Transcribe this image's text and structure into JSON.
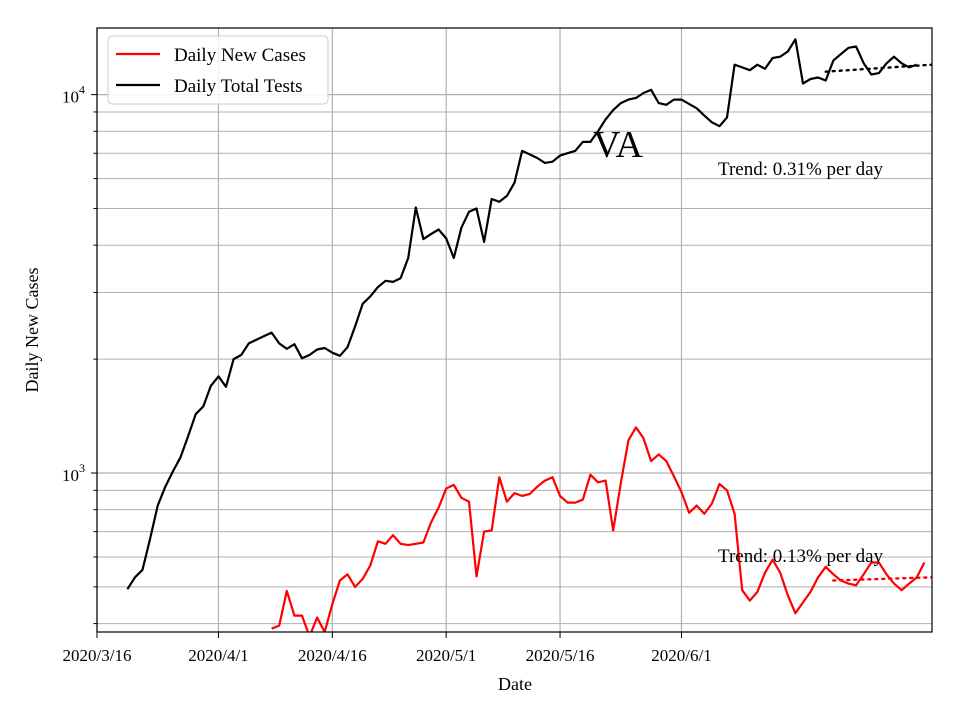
{
  "chart_data": {
    "type": "line",
    "title": "VA",
    "xlabel": "Date",
    "ylabel": "Daily New Cases",
    "yscale": "log",
    "ylim": [
      380,
      15000
    ],
    "xlim": [
      "2020-03-16",
      "2020-07-04"
    ],
    "x_ticks": [
      "2020/3/16",
      "2020/4/1",
      "2020/4/16",
      "2020/5/1",
      "2020/5/16",
      "2020/6/1"
    ],
    "x_tick_dates": [
      "2020-03-16",
      "2020-04-01",
      "2020-04-16",
      "2020-05-01",
      "2020-05-16",
      "2020-06-01"
    ],
    "y_ticks": [
      {
        "value": 1000,
        "base": "10",
        "exp": "3"
      },
      {
        "value": 10000,
        "base": "10",
        "exp": "4"
      }
    ],
    "grid": true,
    "legend_position": "top-left",
    "x_start": "2020-03-20",
    "series": [
      {
        "name": "Daily New Cases",
        "color": "#ff0000",
        "x_start": "2020-04-08",
        "values": [
          388,
          395,
          488,
          420,
          420,
          370,
          415,
          380,
          450,
          520,
          540,
          500,
          525,
          570,
          660,
          650,
          685,
          650,
          645,
          650,
          655,
          740,
          810,
          910,
          930,
          860,
          840,
          533,
          700,
          705,
          975,
          840,
          885,
          870,
          880,
          920,
          955,
          975,
          870,
          835,
          835,
          850,
          990,
          945,
          955,
          705,
          940,
          1220,
          1320,
          1235,
          1075,
          1120,
          1075,
          980,
          890,
          785,
          820,
          780,
          830,
          935,
          900,
          780,
          490,
          460,
          485,
          545,
          590,
          545,
          475,
          426,
          455,
          485,
          530,
          565,
          540,
          520,
          510,
          505,
          540,
          580,
          580,
          540,
          510,
          490,
          510,
          530,
          580
        ]
      },
      {
        "name": "Daily Total Tests",
        "color": "#000000",
        "x_start": "2020-03-20",
        "values": [
          493,
          530,
          555,
          670,
          820,
          920,
          1010,
          1100,
          1250,
          1430,
          1500,
          1700,
          1800,
          1690,
          2000,
          2050,
          2200,
          2250,
          2300,
          2350,
          2200,
          2130,
          2190,
          2010,
          2050,
          2120,
          2140,
          2080,
          2040,
          2150,
          2440,
          2800,
          2930,
          3100,
          3220,
          3200,
          3270,
          3700,
          5030,
          4150,
          4280,
          4400,
          4170,
          3700,
          4450,
          4900,
          5000,
          4080,
          5300,
          5210,
          5400,
          5850,
          7100,
          6950,
          6800,
          6600,
          6650,
          6900,
          7000,
          7100,
          7500,
          7500,
          8000,
          8600,
          9100,
          9500,
          9700,
          9800,
          10100,
          10300,
          9500,
          9400,
          9700,
          9700,
          9450,
          9200,
          8800,
          8450,
          8250,
          8700,
          12000,
          11800,
          11600,
          12000,
          11700,
          12500,
          12600,
          13000,
          14000,
          10700,
          11000,
          11100,
          10900,
          12300,
          12800,
          13300,
          13400,
          12100,
          11300,
          11400,
          12100,
          12600,
          12100,
          11800,
          12000
        ]
      }
    ],
    "trend_lines": [
      {
        "series": "Daily Total Tests",
        "x_start": "2020-06-20",
        "x_end": "2020-07-04",
        "y_start": 11500,
        "y_end": 12000
      },
      {
        "series": "Daily New Cases",
        "x_start": "2020-06-21",
        "x_end": "2020-07-04",
        "y_start": 520,
        "y_end": 530
      }
    ],
    "annotations": [
      {
        "text": "Trend: 0.31% per day",
        "series": "Daily Total Tests"
      },
      {
        "text": "Trend: 0.13% per day",
        "series": "Daily New Cases"
      }
    ]
  }
}
